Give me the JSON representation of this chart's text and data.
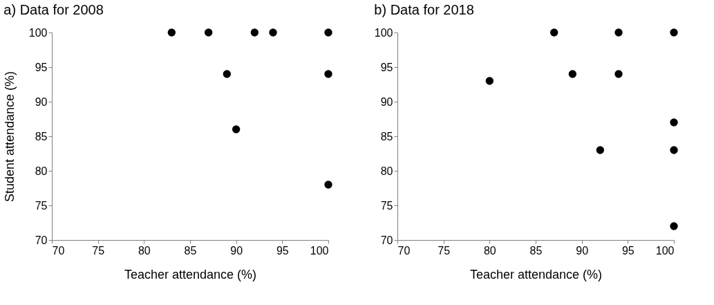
{
  "chart_data": [
    {
      "type": "scatter",
      "title": "a) Data for 2008",
      "xlabel": "Teacher attendance (%)",
      "ylabel": "Student attendance (%)",
      "x": [
        83,
        87,
        92,
        94,
        100,
        89,
        100,
        90,
        100
      ],
      "series": [
        {
          "color": "#000000",
          "values": [
            100,
            100,
            100,
            100,
            100,
            94,
            94,
            86,
            78
          ]
        }
      ],
      "xlim": [
        70,
        100
      ],
      "xticks": [
        70,
        75,
        80,
        85,
        90,
        95,
        100
      ],
      "ylim": [
        70,
        100
      ],
      "yticks": [
        70,
        75,
        80,
        85,
        90,
        95,
        100
      ],
      "grid": false,
      "marker": "circle"
    },
    {
      "type": "scatter",
      "title": "b) Data for 2018",
      "xlabel": "Teacher attendance (%)",
      "x": [
        87,
        94,
        100,
        80,
        89,
        94,
        100,
        92,
        100,
        100
      ],
      "series": [
        {
          "color": "#000000",
          "values": [
            100,
            100,
            100,
            93,
            94,
            94,
            87,
            83,
            83,
            72
          ]
        }
      ],
      "xlim": [
        70,
        100
      ],
      "xticks": [
        70,
        75,
        80,
        85,
        90,
        95,
        100
      ],
      "ylim": [
        70,
        100
      ],
      "yticks": [
        70,
        75,
        80,
        85,
        90,
        95,
        100
      ],
      "grid": false,
      "marker": "circle"
    }
  ]
}
